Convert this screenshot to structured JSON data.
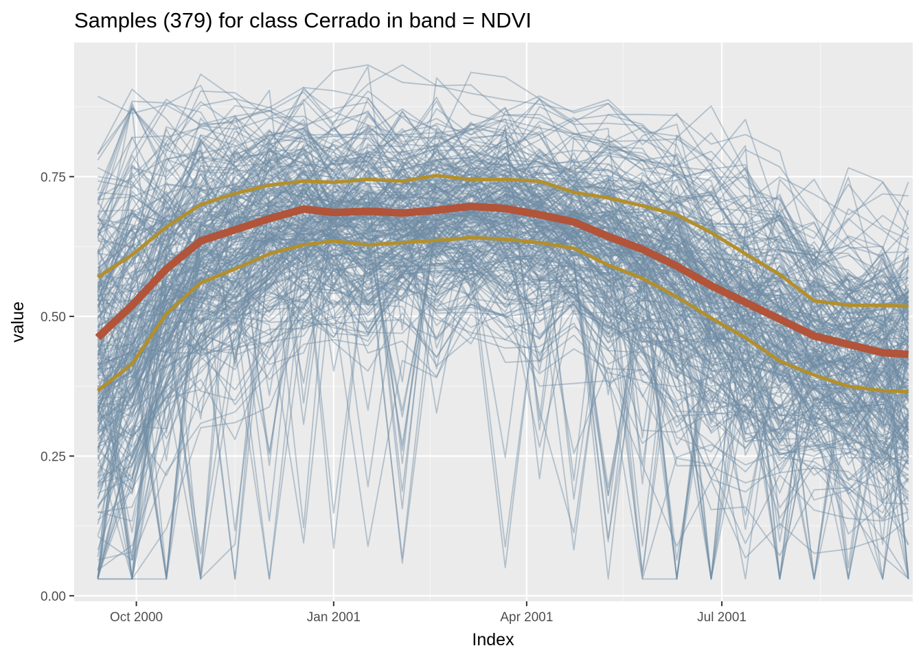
{
  "chart_data": {
    "type": "line",
    "title": "Samples (379) for class Cerrado in band = NDVI",
    "xlabel": "Index",
    "ylabel": "value",
    "sample_count": 379,
    "band": "NDVI",
    "class": "Cerrado",
    "x_dates": [
      "2000-09-13",
      "2000-09-29",
      "2000-10-15",
      "2000-10-31",
      "2000-11-16",
      "2000-12-02",
      "2000-12-18",
      "2001-01-01",
      "2001-01-17",
      "2001-02-02",
      "2001-02-18",
      "2001-03-06",
      "2001-03-22",
      "2001-04-07",
      "2001-04-23",
      "2001-05-09",
      "2001-05-25",
      "2001-06-10",
      "2001-06-26",
      "2001-07-12",
      "2001-07-28",
      "2001-08-13",
      "2001-08-29",
      "2001-09-14",
      "2001-09-26"
    ],
    "xlim": [
      "2000-09-02",
      "2001-09-28"
    ],
    "ylim": [
      -0.01,
      0.99
    ],
    "x_ticks": [
      {
        "date": "2000-10-01",
        "label": "Oct 2000"
      },
      {
        "date": "2001-01-01",
        "label": "Jan 2001"
      },
      {
        "date": "2001-04-01",
        "label": "Apr 2001"
      },
      {
        "date": "2001-07-01",
        "label": "Jul 2001"
      }
    ],
    "x_minor": [
      "2000-11-16",
      "2001-02-15",
      "2001-05-16",
      "2001-08-16"
    ],
    "y_ticks": [
      {
        "value": 0.0,
        "label": "0.00"
      },
      {
        "value": 0.25,
        "label": "0.25"
      },
      {
        "value": 0.5,
        "label": "0.50"
      },
      {
        "value": 0.75,
        "label": "0.75"
      }
    ],
    "y_minor": [
      0.125,
      0.375,
      0.625,
      0.875
    ],
    "series": [
      {
        "name": "median",
        "color": "#b1543a",
        "values": [
          0.462,
          0.52,
          0.585,
          0.635,
          0.655,
          0.675,
          0.692,
          0.686,
          0.688,
          0.685,
          0.69,
          0.697,
          0.693,
          0.682,
          0.669,
          0.643,
          0.62,
          0.59,
          0.555,
          0.525,
          0.495,
          0.465,
          0.45,
          0.435,
          0.432
        ]
      },
      {
        "name": "q75",
        "color": "#b38f2b",
        "values": [
          0.57,
          0.61,
          0.66,
          0.7,
          0.72,
          0.735,
          0.742,
          0.74,
          0.745,
          0.742,
          0.752,
          0.745,
          0.745,
          0.742,
          0.722,
          0.712,
          0.698,
          0.682,
          0.65,
          0.612,
          0.575,
          0.528,
          0.52,
          0.52,
          0.518
        ]
      },
      {
        "name": "q25",
        "color": "#b38f2b",
        "values": [
          0.367,
          0.415,
          0.505,
          0.56,
          0.585,
          0.612,
          0.628,
          0.635,
          0.628,
          0.632,
          0.636,
          0.641,
          0.638,
          0.632,
          0.622,
          0.592,
          0.568,
          0.535,
          0.497,
          0.462,
          0.42,
          0.395,
          0.375,
          0.367,
          0.365
        ]
      }
    ],
    "samples_color": "#6f8ba3"
  }
}
